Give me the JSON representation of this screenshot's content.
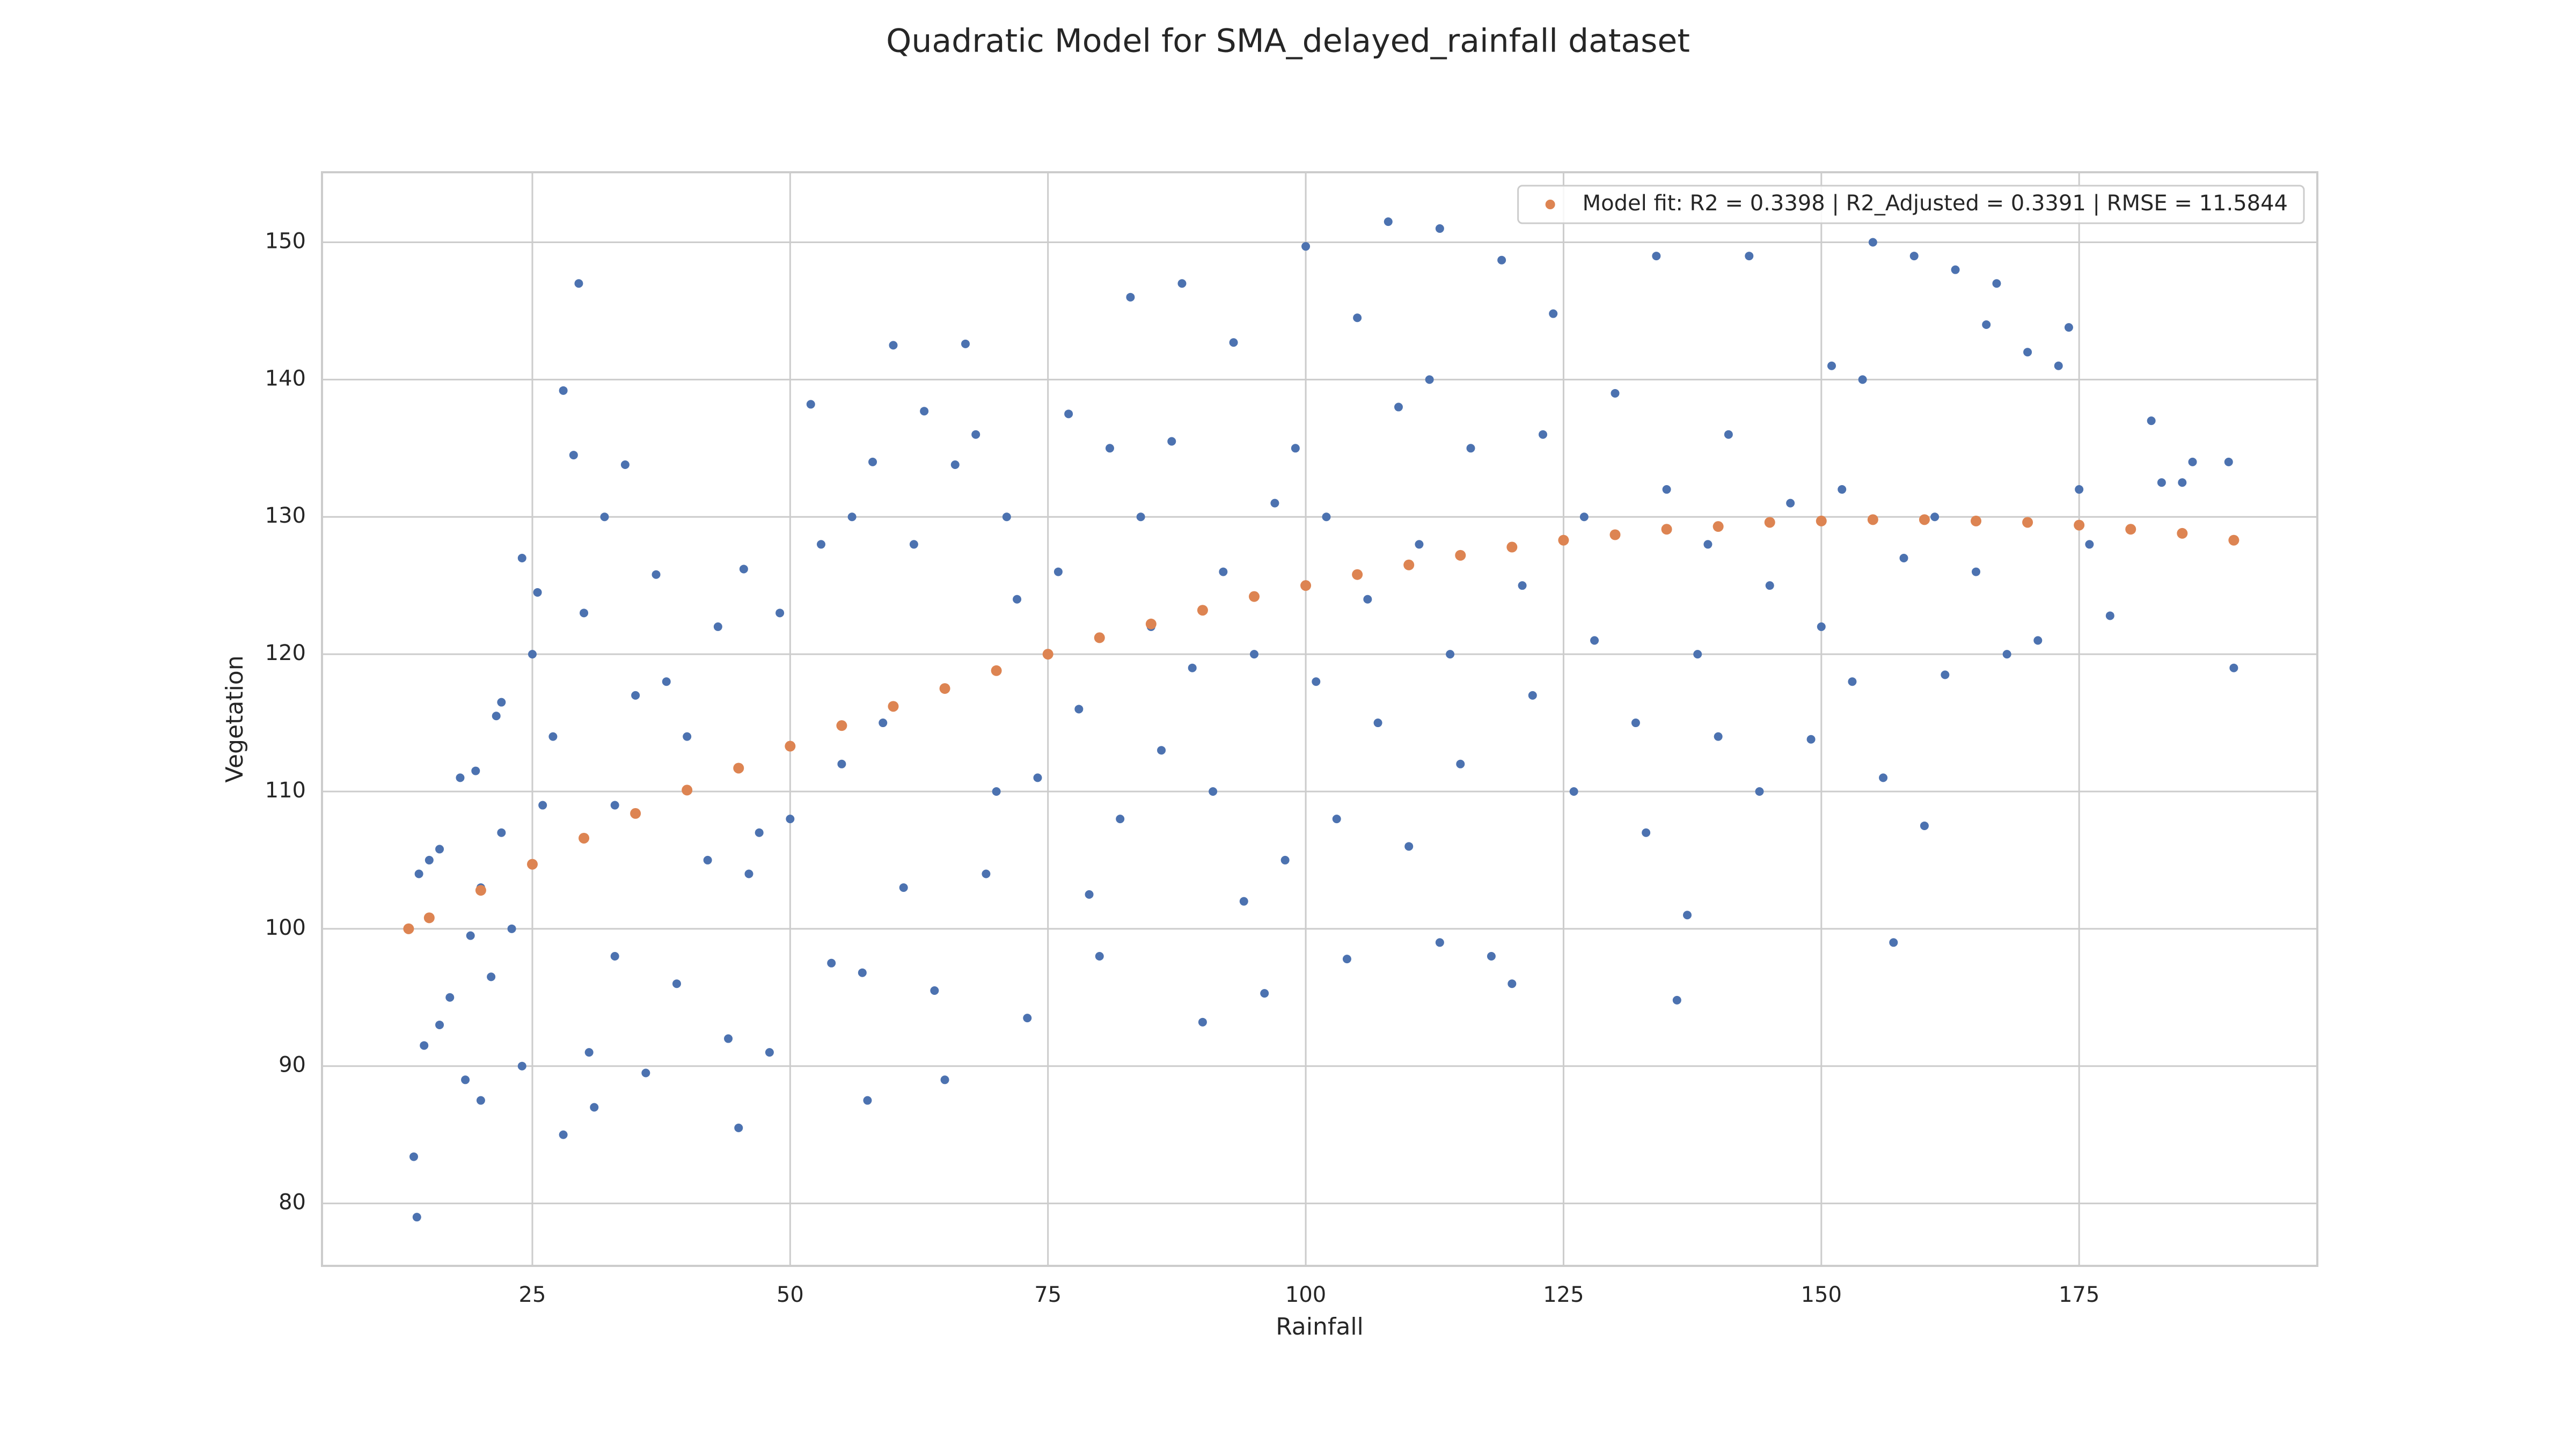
{
  "chart_data": {
    "type": "scatter",
    "title": "Quadratic Model for SMA_delayed_rainfall dataset",
    "x_label": "Rainfall",
    "y_label": "Vegetation",
    "xlim": [
      4.6,
      198.1
    ],
    "ylim": [
      75.45,
      155.1
    ],
    "xticks": [
      25,
      50,
      75,
      100,
      125,
      150,
      175
    ],
    "yticks": [
      80,
      90,
      100,
      110,
      120,
      130,
      140,
      150
    ],
    "grid": true,
    "legend": "upper right",
    "series": [
      {
        "color": "#4c72b0",
        "x": [
          13.5,
          13.8,
          14,
          14.5,
          15,
          16,
          16,
          17,
          18,
          18.5,
          19,
          19.5,
          20,
          20,
          21,
          21.5,
          22,
          22,
          23,
          24,
          24,
          25,
          25.5,
          26,
          27,
          28,
          28,
          29,
          29.5,
          30,
          30.5,
          31,
          32,
          33,
          33,
          34,
          35,
          36,
          37,
          38,
          39,
          40,
          42,
          43,
          44,
          45,
          45.5,
          46,
          47,
          48,
          49,
          50,
          52,
          53,
          54,
          55,
          56,
          57,
          57.5,
          58,
          59,
          60,
          61,
          62,
          63,
          64,
          65,
          66,
          67,
          68,
          69,
          70,
          71,
          72,
          73,
          74,
          76,
          77,
          78,
          79,
          80,
          81,
          82,
          83,
          84,
          85,
          86,
          87,
          88,
          89,
          90,
          91,
          92,
          93,
          94,
          95,
          96,
          97,
          98,
          99,
          100,
          101,
          102,
          103,
          104,
          105,
          106,
          107,
          108,
          109,
          110,
          111,
          112,
          113,
          113,
          114,
          115,
          116,
          118,
          119,
          120,
          121,
          122,
          123,
          124,
          126,
          127,
          128,
          130,
          132,
          133,
          134,
          135,
          136,
          137,
          138,
          139,
          140,
          141,
          143,
          144,
          145,
          147,
          149,
          150,
          151,
          152,
          153,
          154,
          155,
          156,
          157,
          158,
          159,
          160,
          161,
          162,
          163,
          165,
          166,
          167,
          168,
          170,
          171,
          173,
          174,
          175,
          176,
          178,
          182,
          183,
          185,
          186,
          189.5,
          190
        ],
        "values": [
          83.4,
          79,
          104,
          91.5,
          105,
          105.8,
          93,
          95,
          111,
          89,
          99.5,
          111.5,
          87.5,
          103,
          96.5,
          115.5,
          107,
          116.5,
          100,
          90,
          127,
          120,
          124.5,
          109,
          114,
          139.2,
          85,
          134.5,
          147,
          123,
          91,
          87,
          130,
          109,
          98,
          133.8,
          117,
          89.5,
          125.8,
          118,
          96,
          114,
          105,
          122,
          92,
          85.5,
          126.2,
          104,
          107,
          91,
          123,
          108,
          138.2,
          128,
          97.5,
          112,
          130,
          96.8,
          87.5,
          134,
          115,
          142.5,
          103,
          128,
          137.7,
          95.5,
          89,
          133.8,
          142.6,
          136,
          104,
          110,
          130,
          124,
          93.5,
          111,
          126,
          137.5,
          116,
          102.5,
          98,
          135,
          108,
          146,
          130,
          122,
          113,
          135.5,
          147,
          119,
          93.2,
          110,
          126,
          142.7,
          102,
          120,
          95.3,
          131,
          105,
          135,
          149.7,
          118,
          130,
          108,
          97.8,
          144.5,
          124,
          115,
          151.5,
          138,
          106,
          128,
          140,
          99,
          151,
          120,
          112,
          135,
          98,
          148.7,
          96,
          125,
          117,
          136,
          144.8,
          110,
          130,
          121,
          139,
          115,
          107,
          149,
          132,
          94.8,
          101,
          120,
          128,
          114,
          136,
          149,
          110,
          125,
          131,
          113.8,
          122,
          141,
          132,
          118,
          140,
          150,
          111,
          99,
          127,
          149,
          107.5,
          130,
          118.5,
          148,
          126,
          144,
          147,
          120,
          142,
          121,
          141,
          143.8,
          132,
          128,
          122.8,
          137,
          132.5,
          132.5,
          134,
          134,
          119
        ]
      },
      {
        "name": "Model fit: R2 = 0.3398 | R2_Adjusted = 0.3391 | RMSE = 11.5844",
        "color": "#dd8452",
        "x": [
          13,
          15,
          20,
          25,
          30,
          35,
          40,
          45,
          50,
          55,
          60,
          65,
          70,
          75,
          80,
          85,
          90,
          95,
          100,
          105,
          110,
          115,
          120,
          125,
          130,
          135,
          140,
          145,
          150,
          155,
          160,
          165,
          170,
          175,
          180,
          185,
          190
        ],
        "values": [
          100.0,
          100.8,
          102.8,
          104.7,
          106.6,
          108.4,
          110.1,
          111.7,
          113.3,
          114.8,
          116.2,
          117.5,
          118.8,
          120.0,
          121.2,
          122.2,
          123.2,
          124.2,
          125.0,
          125.8,
          126.5,
          127.2,
          127.8,
          128.3,
          128.7,
          129.1,
          129.3,
          129.6,
          129.7,
          129.8,
          129.8,
          129.7,
          129.6,
          129.4,
          129.1,
          128.8,
          128.3
        ]
      }
    ]
  }
}
